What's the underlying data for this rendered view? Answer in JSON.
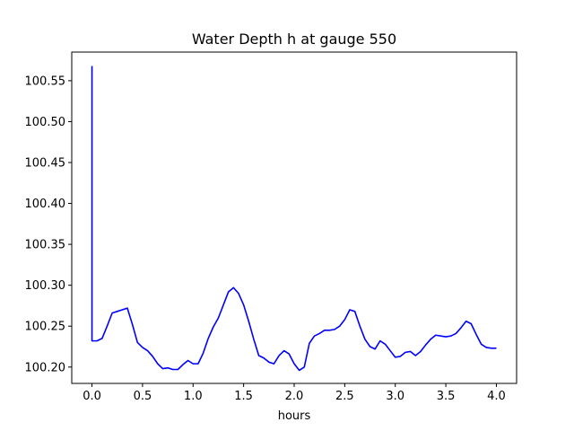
{
  "chart_data": {
    "type": "line",
    "title": "Water Depth h at gauge 550",
    "xlabel": "hours",
    "ylabel": "",
    "xlim": [
      -0.2,
      4.2
    ],
    "ylim": [
      100.18,
      100.585
    ],
    "xticks": [
      0.0,
      0.5,
      1.0,
      1.5,
      2.0,
      2.5,
      3.0,
      3.5,
      4.0
    ],
    "xtick_labels": [
      "0.0",
      "0.5",
      "1.0",
      "1.5",
      "2.0",
      "2.5",
      "3.0",
      "3.5",
      "4.0"
    ],
    "yticks": [
      100.2,
      100.25,
      100.3,
      100.35,
      100.4,
      100.45,
      100.5,
      100.55
    ],
    "ytick_labels": [
      "100.20",
      "100.25",
      "100.30",
      "100.35",
      "100.40",
      "100.45",
      "100.50",
      "100.55"
    ],
    "grid": false,
    "line_color": "#0000ff",
    "series": [
      {
        "x": [
          0.0,
          0.0,
          0.05,
          0.1,
          0.15,
          0.2,
          0.25,
          0.3,
          0.35,
          0.4,
          0.45,
          0.5,
          0.55,
          0.6,
          0.65,
          0.7,
          0.75,
          0.8,
          0.85,
          0.9,
          0.95,
          1.0,
          1.05,
          1.1,
          1.15,
          1.2,
          1.25,
          1.3,
          1.35,
          1.4,
          1.45,
          1.5,
          1.55,
          1.6,
          1.65,
          1.7,
          1.75,
          1.8,
          1.85,
          1.9,
          1.95,
          2.0,
          2.05,
          2.1,
          2.15,
          2.2,
          2.25,
          2.3,
          2.35,
          2.4,
          2.45,
          2.5,
          2.55,
          2.6,
          2.65,
          2.7,
          2.75,
          2.8,
          2.85,
          2.9,
          2.95,
          3.0,
          3.05,
          3.1,
          3.15,
          3.2,
          3.25,
          3.3,
          3.35,
          3.4,
          3.45,
          3.5,
          3.55,
          3.6,
          3.65,
          3.7,
          3.75,
          3.8,
          3.85,
          3.9,
          3.95,
          4.0
        ],
        "y": [
          100.568,
          100.232,
          100.232,
          100.235,
          100.25,
          100.266,
          100.268,
          100.27,
          100.272,
          100.252,
          100.23,
          100.224,
          100.22,
          100.213,
          100.204,
          100.198,
          100.199,
          100.197,
          100.197,
          100.203,
          100.208,
          100.204,
          100.204,
          100.217,
          100.235,
          100.249,
          100.26,
          100.276,
          100.292,
          100.297,
          100.29,
          100.276,
          100.256,
          100.234,
          100.214,
          100.211,
          100.206,
          100.204,
          100.214,
          100.22,
          100.216,
          100.204,
          100.196,
          100.2,
          100.229,
          100.238,
          100.241,
          100.245,
          100.245,
          100.246,
          100.25,
          100.258,
          100.27,
          100.268,
          100.25,
          100.234,
          100.225,
          100.222,
          100.232,
          100.228,
          100.22,
          100.212,
          100.213,
          100.218,
          100.219,
          100.214,
          100.219,
          100.227,
          100.234,
          100.239,
          100.238,
          100.237,
          100.238,
          100.241,
          100.248,
          100.256,
          100.253,
          100.24,
          100.228,
          100.224,
          100.223,
          100.223
        ]
      }
    ]
  }
}
